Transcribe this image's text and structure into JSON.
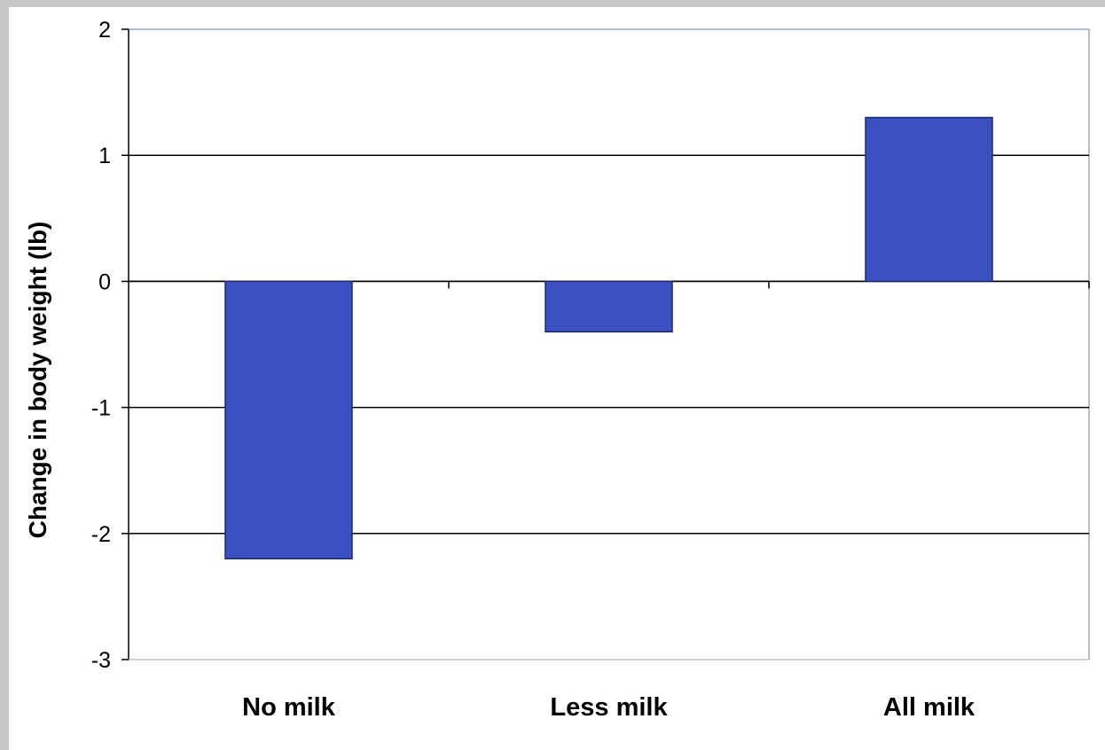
{
  "chart_data": {
    "type": "bar",
    "categories": [
      "No milk",
      "Less milk",
      "All milk"
    ],
    "values": [
      -2.2,
      -0.4,
      1.3
    ],
    "ylabel": "Change in body weight (lb)",
    "xlabel": "",
    "ylim": [
      -3,
      2
    ],
    "yticks": [
      "2",
      "1",
      "0",
      "-1",
      "-2",
      "-3"
    ],
    "grid": true,
    "bar_color": "#3a4fc0",
    "bar_border_color": "#1e2a6e",
    "gridline_color": "#000000",
    "background_color": "#ffffff"
  }
}
